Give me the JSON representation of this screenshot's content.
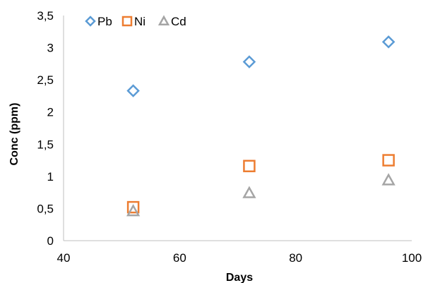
{
  "chart_data": {
    "type": "scatter",
    "xlabel": "Days",
    "ylabel": "Conc (ppm)",
    "xlim": [
      40,
      100
    ],
    "ylim": [
      0,
      3.5
    ],
    "x_ticks": [
      "40",
      "60",
      "80",
      "100"
    ],
    "y_ticks": [
      "0",
      "0,5",
      "1",
      "1,5",
      "2",
      "2,5",
      "3",
      "3,5"
    ],
    "grid": false,
    "legend_position": "top-left",
    "series": [
      {
        "name": "Pb",
        "marker": "diamond",
        "color": "#5B9BD5",
        "points": [
          {
            "x": 52,
            "y": 2.33
          },
          {
            "x": 72,
            "y": 2.78
          },
          {
            "x": 96,
            "y": 3.09
          }
        ]
      },
      {
        "name": "Ni",
        "marker": "square",
        "color": "#ED7D31",
        "points": [
          {
            "x": 52,
            "y": 0.52
          },
          {
            "x": 72,
            "y": 1.16
          },
          {
            "x": 96,
            "y": 1.25
          }
        ]
      },
      {
        "name": "Cd",
        "marker": "triangle",
        "color": "#A5A5A5",
        "points": [
          {
            "x": 52,
            "y": 0.46
          },
          {
            "x": 72,
            "y": 0.74
          },
          {
            "x": 96,
            "y": 0.94
          }
        ]
      }
    ]
  }
}
